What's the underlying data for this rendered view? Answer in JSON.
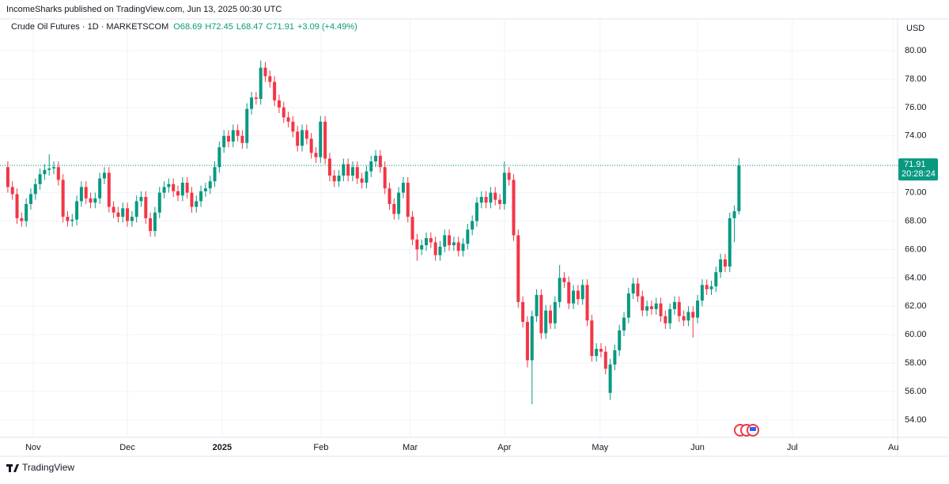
{
  "header": {
    "published": "IncomeSharks published on TradingView.com, Jun 13, 2025 00:30 UTC"
  },
  "legend": {
    "symbol": "Crude Oil Futures · 1D · MARKETSCOM",
    "open": "O68.69",
    "high": "H72.45",
    "low": "L68.47",
    "close": "C71.91",
    "change": "+3.09 (+4.49%)"
  },
  "currency": "USD",
  "last_price_label": "71.91",
  "countdown": "20:28:24",
  "footer": {
    "brand": "TradingView"
  },
  "chart_data": {
    "type": "candlestick",
    "up_color": "#089981",
    "down_color": "#f23645",
    "grid": true,
    "ylim": [
      52.77,
      81.06
    ],
    "yticks": [
      {
        "value": 54,
        "label": "54.00"
      },
      {
        "value": 56,
        "label": "56.00"
      },
      {
        "value": 58,
        "label": "58.00"
      },
      {
        "value": 60,
        "label": "60.00"
      },
      {
        "value": 62,
        "label": "62.00"
      },
      {
        "value": 64,
        "label": "64.00"
      },
      {
        "value": 66,
        "label": "66.00"
      },
      {
        "value": 68,
        "label": "68.00"
      },
      {
        "value": 70,
        "label": "70.00"
      },
      {
        "value": 72,
        "label": "72.00"
      },
      {
        "value": 74,
        "label": "74.00"
      },
      {
        "value": 76,
        "label": "76.00"
      },
      {
        "value": 78,
        "label": "78.00"
      },
      {
        "value": 80,
        "label": "80.00"
      }
    ],
    "xlim": [
      -1.7,
      193.5
    ],
    "xticks": [
      {
        "value": 5.5,
        "label": "Nov"
      },
      {
        "value": 26,
        "label": "Dec"
      },
      {
        "value": 46.6,
        "label": "2025",
        "bold": true
      },
      {
        "value": 68.1,
        "label": "Feb"
      },
      {
        "value": 87.5,
        "label": "Mar"
      },
      {
        "value": 108,
        "label": "Apr"
      },
      {
        "value": 128.8,
        "label": "May"
      },
      {
        "value": 150,
        "label": "Jun"
      },
      {
        "value": 170.6,
        "label": "Jul"
      },
      {
        "value": 192.6,
        "label": "Au"
      }
    ],
    "open": [
      71.8,
      70.4,
      69.9,
      68.2,
      68.0,
      69.2,
      69.9,
      70.6,
      71.3,
      71.6,
      71.7,
      71.8,
      70.9,
      68.3,
      68.0,
      68.1,
      69.4,
      70.4,
      69.6,
      69.3,
      69.6,
      71.0,
      71.4,
      69.0,
      68.6,
      68.3,
      68.9,
      68.0,
      68.3,
      69.4,
      69.7,
      68.2,
      67.3,
      68.6,
      70.0,
      70.4,
      70.6,
      70.1,
      69.8,
      70.7,
      70.0,
      69.0,
      69.4,
      70.1,
      70.3,
      70.8,
      71.8,
      73.2,
      74.0,
      73.6,
      74.4,
      74.0,
      73.5,
      75.9,
      76.7,
      76.6,
      78.8,
      78.2,
      77.8,
      76.5,
      76.0,
      75.3,
      75.0,
      74.3,
      73.3,
      74.4,
      73.8,
      72.8,
      72.5,
      75.0,
      72.4,
      71.2,
      70.8,
      71.2,
      72.0,
      71.2,
      71.8,
      71.0,
      70.7,
      71.5,
      72.2,
      72.6,
      71.8,
      70.3,
      69.2,
      68.5,
      70.0,
      70.7,
      68.3,
      66.7,
      66.0,
      66.3,
      66.8,
      66.5,
      65.6,
      66.2,
      67.0,
      66.3,
      66.5,
      65.9,
      66.4,
      67.4,
      68.0,
      69.3,
      69.7,
      69.3,
      70.0,
      69.5,
      69.2,
      71.4,
      70.9,
      67.0,
      62.3,
      60.9,
      58.2,
      61.3,
      62.8,
      60.1,
      61.7,
      60.8,
      62.3,
      64.0,
      63.7,
      62.2,
      63.1,
      62.5,
      63.5,
      61.0,
      58.5,
      59.0,
      58.8,
      55.9,
      57.9,
      58.9,
      60.3,
      61.2,
      62.9,
      63.6,
      62.7,
      61.7,
      62.0,
      61.8,
      62.2,
      61.3,
      60.8,
      61.8,
      62.3,
      61.3,
      61.0,
      61.6,
      61.2,
      62.4,
      63.5,
      63.2,
      63.4,
      64.4,
      65.3,
      64.8,
      68.2,
      68.69
    ],
    "high": [
      72.2,
      70.8,
      70.3,
      68.6,
      69.6,
      70.3,
      71.0,
      71.7,
      72.0,
      72.7,
      72.2,
      72.2,
      71.3,
      68.7,
      68.5,
      69.8,
      70.8,
      70.8,
      70.0,
      70.0,
      71.4,
      71.8,
      71.8,
      69.4,
      69.0,
      69.3,
      69.3,
      68.7,
      69.8,
      70.1,
      70.1,
      68.6,
      69.0,
      70.4,
      70.8,
      71.0,
      71.0,
      70.5,
      71.1,
      71.1,
      70.4,
      69.8,
      70.5,
      70.7,
      71.2,
      72.2,
      73.6,
      74.4,
      74.4,
      74.8,
      74.8,
      74.4,
      76.3,
      77.1,
      77.1,
      79.3,
      79.2,
      78.6,
      78.2,
      76.9,
      76.4,
      75.7,
      75.4,
      74.7,
      74.8,
      74.8,
      74.2,
      73.2,
      75.4,
      75.4,
      72.8,
      71.6,
      71.6,
      72.4,
      72.4,
      72.2,
      72.2,
      71.4,
      71.9,
      72.6,
      73.0,
      73.0,
      72.2,
      70.7,
      69.6,
      70.4,
      71.1,
      71.1,
      68.7,
      67.1,
      66.7,
      67.2,
      67.2,
      66.9,
      66.6,
      67.4,
      67.4,
      66.9,
      66.9,
      66.8,
      67.8,
      68.4,
      69.7,
      70.1,
      70.1,
      70.4,
      70.4,
      69.9,
      72.2,
      71.8,
      71.3,
      67.4,
      62.7,
      61.3,
      61.7,
      63.2,
      63.2,
      62.1,
      62.1,
      62.7,
      64.9,
      64.4,
      64.1,
      63.5,
      63.5,
      63.9,
      63.9,
      61.4,
      59.4,
      59.4,
      59.2,
      58.3,
      59.3,
      60.7,
      61.6,
      63.3,
      64.0,
      64.0,
      63.1,
      62.4,
      62.4,
      62.6,
      62.6,
      61.7,
      62.2,
      62.7,
      62.7,
      61.7,
      62.0,
      62.0,
      62.8,
      63.9,
      63.9,
      63.8,
      64.8,
      65.7,
      65.7,
      68.6,
      69.1,
      72.45
    ],
    "low": [
      70.0,
      69.5,
      67.8,
      67.6,
      67.6,
      68.8,
      69.5,
      70.2,
      70.9,
      71.2,
      71.3,
      70.5,
      67.9,
      67.6,
      67.6,
      67.7,
      69.0,
      69.2,
      68.9,
      68.9,
      69.2,
      70.6,
      68.6,
      68.2,
      67.9,
      67.9,
      67.6,
      67.6,
      67.9,
      69.0,
      67.8,
      66.9,
      66.9,
      68.2,
      69.6,
      70.0,
      69.7,
      69.4,
      69.4,
      69.6,
      68.6,
      68.6,
      69.0,
      69.7,
      69.9,
      70.4,
      71.4,
      72.8,
      73.2,
      73.2,
      73.6,
      73.1,
      73.1,
      75.5,
      76.2,
      76.2,
      77.8,
      77.4,
      76.1,
      75.6,
      74.9,
      74.6,
      73.9,
      72.9,
      72.9,
      73.4,
      72.4,
      72.1,
      72.1,
      72.0,
      70.8,
      70.4,
      70.4,
      70.8,
      70.8,
      70.8,
      70.6,
      70.3,
      70.3,
      71.1,
      71.8,
      71.4,
      69.9,
      68.8,
      68.1,
      68.1,
      69.6,
      67.9,
      66.3,
      65.2,
      65.6,
      65.9,
      66.1,
      65.2,
      65.2,
      65.8,
      65.9,
      65.9,
      65.5,
      65.5,
      66.0,
      67.0,
      67.6,
      68.9,
      68.9,
      68.9,
      69.1,
      68.8,
      68.8,
      70.5,
      66.6,
      61.9,
      60.5,
      57.7,
      55.1,
      60.9,
      59.7,
      59.7,
      60.4,
      60.4,
      61.9,
      63.3,
      61.8,
      61.8,
      62.1,
      62.1,
      60.6,
      58.1,
      58.1,
      58.4,
      57.2,
      55.4,
      57.5,
      58.5,
      59.9,
      60.8,
      62.5,
      62.3,
      61.3,
      61.3,
      61.4,
      61.4,
      60.9,
      60.4,
      60.4,
      61.4,
      60.9,
      60.6,
      60.6,
      59.8,
      60.8,
      62.0,
      62.8,
      62.8,
      63.0,
      64.0,
      64.4,
      64.4,
      66.5,
      68.47
    ],
    "close": [
      70.4,
      69.9,
      68.2,
      68.0,
      69.2,
      69.9,
      70.6,
      71.3,
      71.6,
      71.7,
      71.8,
      70.9,
      68.3,
      68.0,
      68.1,
      69.4,
      70.4,
      69.6,
      69.3,
      69.6,
      71.0,
      71.4,
      69.0,
      68.6,
      68.3,
      68.9,
      68.0,
      68.3,
      69.4,
      69.7,
      68.2,
      67.3,
      68.6,
      70.0,
      70.4,
      70.6,
      70.1,
      69.8,
      70.7,
      70.0,
      69.0,
      69.4,
      70.1,
      70.3,
      70.8,
      71.8,
      73.2,
      74.0,
      73.6,
      74.4,
      74.0,
      73.5,
      75.9,
      76.7,
      76.6,
      78.8,
      78.2,
      77.8,
      76.5,
      76.0,
      75.3,
      75.0,
      74.3,
      73.3,
      74.4,
      73.8,
      72.8,
      72.5,
      75.0,
      72.4,
      71.2,
      70.8,
      71.2,
      72.0,
      71.2,
      71.8,
      71.0,
      70.7,
      71.5,
      72.2,
      72.6,
      71.8,
      70.3,
      69.2,
      68.5,
      70.0,
      70.7,
      68.3,
      66.7,
      66.0,
      66.3,
      66.8,
      66.5,
      65.6,
      66.2,
      67.0,
      66.3,
      66.5,
      65.9,
      66.4,
      67.4,
      68.0,
      69.3,
      69.7,
      69.3,
      70.0,
      69.5,
      69.2,
      71.4,
      70.9,
      67.0,
      62.3,
      60.9,
      58.2,
      61.3,
      62.8,
      60.1,
      61.7,
      60.8,
      62.3,
      64.0,
      63.7,
      62.2,
      63.1,
      62.5,
      63.5,
      61.0,
      58.5,
      59.0,
      58.8,
      57.6,
      57.9,
      58.9,
      60.3,
      61.2,
      62.9,
      63.6,
      62.7,
      61.7,
      62.0,
      61.8,
      62.2,
      61.3,
      60.8,
      61.8,
      62.3,
      61.3,
      61.0,
      61.6,
      61.2,
      62.4,
      63.5,
      63.2,
      63.4,
      64.4,
      65.3,
      64.8,
      68.2,
      68.69,
      71.91
    ]
  }
}
